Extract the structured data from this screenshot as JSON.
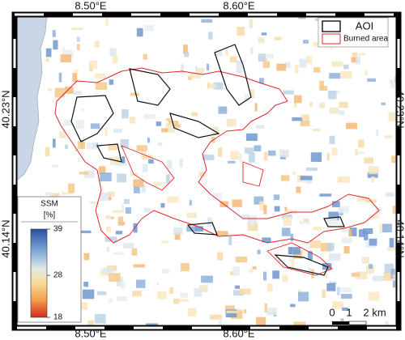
{
  "map": {
    "lon_labels": [
      "8.50°E",
      "8.60°E"
    ],
    "lat_labels": [
      "40.23°N",
      "40.14°N"
    ],
    "legend": {
      "aoi": "AOI",
      "burned": "Burned area"
    },
    "colorbar": {
      "title": "SSM",
      "unit": "[%]",
      "ticks": [
        39,
        28,
        18
      ]
    },
    "scale_bar": {
      "ticks": [
        "0",
        "1",
        "2"
      ],
      "unit": "km"
    }
  }
}
